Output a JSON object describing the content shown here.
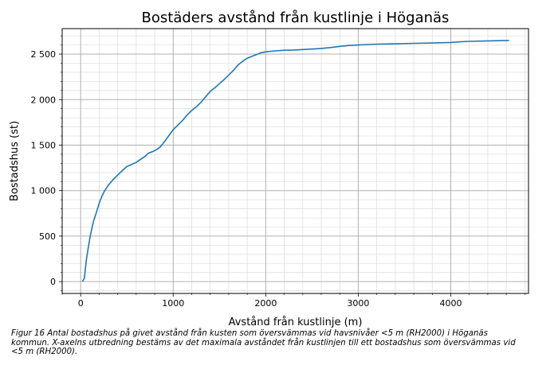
{
  "chart_data": {
    "type": "line",
    "title": "Bostäders avstånd från kustlinje i Höganäs",
    "xlabel": "Avstånd från kustlinje (m)",
    "ylabel": "Bostadshus (st)",
    "xlim": [
      -200,
      4840
    ],
    "ylim": [
      -130,
      2780
    ],
    "xticks": [
      0,
      1000,
      2000,
      3000,
      4000
    ],
    "xtick_labels": [
      "0",
      "1000",
      "2000",
      "3000",
      "4000"
    ],
    "yticks": [
      0,
      500,
      1000,
      1500,
      2000,
      2500
    ],
    "ytick_labels": [
      "0",
      "500",
      "1 000",
      "1 500",
      "2 000",
      "2 500"
    ],
    "grid": "major and minor",
    "colors": {
      "line": "#1f77b4",
      "major_grid": "#b0b0b0",
      "minor_grid": "#e0e0e0"
    },
    "series": [
      {
        "x": [
          20,
          40,
          50,
          60,
          80,
          100,
          120,
          140,
          170,
          200,
          230,
          260,
          300,
          350,
          400,
          450,
          500,
          600,
          650,
          700,
          730,
          780,
          820,
          860,
          900,
          950,
          1000,
          1050,
          1100,
          1150,
          1200,
          1250,
          1300,
          1350,
          1400,
          1450,
          1500,
          1550,
          1600,
          1650,
          1700,
          1750,
          1800,
          1850,
          1900,
          1950,
          2000,
          2100,
          2200,
          2300,
          2400,
          2500,
          2600,
          2700,
          2800,
          2900,
          3000,
          3100,
          3200,
          3400,
          3600,
          3800,
          4000,
          4100,
          4200,
          4400,
          4600,
          4630
        ],
        "y": [
          0,
          40,
          130,
          230,
          360,
          480,
          580,
          670,
          760,
          860,
          940,
          1000,
          1060,
          1120,
          1170,
          1220,
          1265,
          1310,
          1345,
          1380,
          1410,
          1430,
          1450,
          1480,
          1530,
          1600,
          1670,
          1720,
          1770,
          1830,
          1880,
          1920,
          1970,
          2030,
          2090,
          2130,
          2175,
          2220,
          2270,
          2320,
          2380,
          2420,
          2455,
          2475,
          2495,
          2515,
          2525,
          2535,
          2542,
          2545,
          2550,
          2555,
          2562,
          2572,
          2585,
          2595,
          2600,
          2605,
          2610,
          2613,
          2618,
          2622,
          2628,
          2635,
          2640,
          2645,
          2650,
          2650
        ]
      }
    ]
  },
  "caption": "Figur 16 Antal bostadshus på givet avstånd från kusten som översvämmas vid havsnivåer <5 m (RH2000) i Höganäs kommun. X-axelns utbredning bestäms av det maximala avståndet från kustlinjen till ett bostadshus som översvämmas vid <5 m (RH2000)."
}
